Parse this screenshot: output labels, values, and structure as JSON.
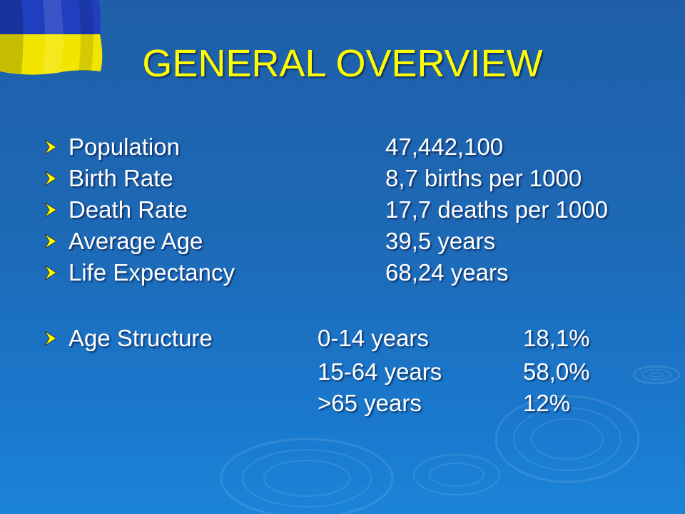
{
  "slide": {
    "title": "GENERAL OVERVIEW",
    "stats": [
      {
        "label": "Population",
        "value": "47,442,100"
      },
      {
        "label": "Birth Rate",
        "value": "8,7 births per 1000"
      },
      {
        "label": "Death Rate",
        "value": "17,7 deaths per 1000"
      },
      {
        "label": "Average Age",
        "value": "39,5 years"
      },
      {
        "label": "Life Expectancy",
        "value": "68,24 years"
      }
    ],
    "age_structure": {
      "label": "Age Structure",
      "rows": [
        {
          "range": "0-14 years",
          "percent": "18,1%"
        },
        {
          "range": "15-64 years",
          "percent": "58,0%"
        },
        {
          "range": ">65 years",
          "percent": "12%"
        }
      ]
    }
  },
  "colors": {
    "title": "#ffff00",
    "text": "#ffffff",
    "bullet": "#ffff00",
    "flag_blue": "#1f3fbf",
    "flag_yellow": "#f2e600"
  },
  "icons": {
    "bullet": "arrowhead-bullet-icon",
    "flag": "ukraine-flag-icon"
  }
}
